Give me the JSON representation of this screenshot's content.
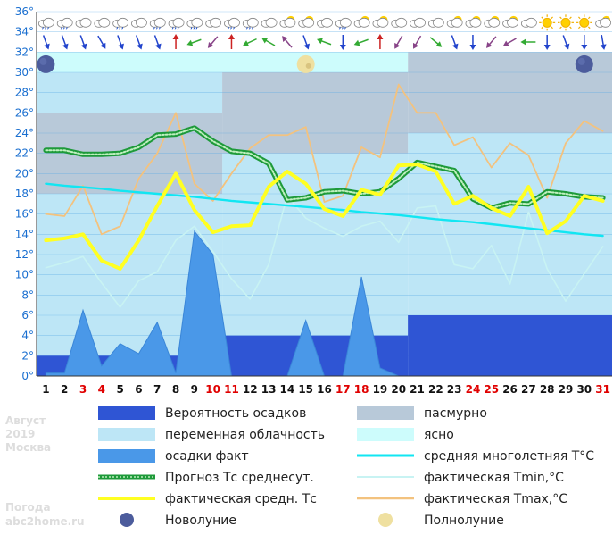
{
  "chart_data": {
    "type": "line",
    "title": "",
    "ylabel": "",
    "xlabel": "",
    "ylim": [
      0,
      36
    ],
    "y_ticks": [
      "0°",
      "2°",
      "4°",
      "6°",
      "8°",
      "10°",
      "12°",
      "14°",
      "16°",
      "18°",
      "20°",
      "22°",
      "24°",
      "26°",
      "28°",
      "30°",
      "32°",
      "34°",
      "36°"
    ],
    "y_tick_values": [
      0,
      2,
      4,
      6,
      8,
      10,
      12,
      14,
      16,
      18,
      20,
      22,
      24,
      26,
      28,
      30,
      32,
      34,
      36
    ],
    "x": [
      1,
      2,
      3,
      4,
      5,
      6,
      7,
      8,
      9,
      10,
      11,
      12,
      13,
      14,
      15,
      16,
      17,
      18,
      19,
      20,
      21,
      22,
      23,
      24,
      25,
      26,
      27,
      28,
      29,
      30,
      31
    ],
    "x_labels": [
      "1",
      "2",
      "3",
      "4",
      "5",
      "6",
      "7",
      "8",
      "9",
      "10",
      "11",
      "12",
      "13",
      "14",
      "15",
      "16",
      "17",
      "18",
      "19",
      "20",
      "21",
      "22",
      "23",
      "24",
      "25",
      "26",
      "27",
      "28",
      "29",
      "30",
      "31"
    ],
    "weekend_days": [
      3,
      4,
      10,
      11,
      17,
      18,
      24,
      25,
      31
    ],
    "weekend_color": "#e00000",
    "cloud_bands": [
      {
        "from": 0.5,
        "to": 10.5,
        "level": 18,
        "type": "partly"
      },
      {
        "from": 10.5,
        "to": 20.5,
        "level": 22,
        "type": "partly"
      },
      {
        "from": 20.5,
        "to": 31.5,
        "level": 24,
        "type": "partly"
      },
      {
        "from": 0.5,
        "to": 10.5,
        "level": 26,
        "type": "overcast",
        "base": 18
      },
      {
        "from": 0.5,
        "to": 10.5,
        "level": 30,
        "type": "partly",
        "base": 26
      },
      {
        "from": 10.5,
        "to": 20.5,
        "level": 30,
        "type": "overcast",
        "base": 22
      },
      {
        "from": 20.5,
        "to": 31.5,
        "level": 32,
        "type": "overcast",
        "base": 24
      },
      {
        "from": 0.5,
        "to": 20.5,
        "level": 32,
        "type": "clear",
        "base": 30
      }
    ],
    "precip_probability_steps": [
      {
        "from": 0.5,
        "to": 10.5,
        "value": 2
      },
      {
        "from": 10.5,
        "to": 20.5,
        "value": 4
      },
      {
        "from": 20.5,
        "to": 31.5,
        "value": 6
      }
    ],
    "series": [
      {
        "name": "осадки факт",
        "key": "precip_actual",
        "values": [
          0.3,
          0.3,
          6.5,
          1.0,
          3.2,
          2.2,
          5.3,
          0.3,
          14.3,
          12.0,
          0,
          0,
          0,
          0,
          5.5,
          0,
          0,
          9.8,
          0.8,
          0,
          0,
          0,
          0,
          0,
          0,
          0,
          0,
          0,
          0,
          0,
          0
        ]
      },
      {
        "name": "фактическая Tmax,°C",
        "key": "tmax",
        "values": [
          16.0,
          15.8,
          18.8,
          14.0,
          14.8,
          19.5,
          22.0,
          26.0,
          19.0,
          17.3,
          20.0,
          22.5,
          23.8,
          23.8,
          24.6,
          17.2,
          17.8,
          22.6,
          21.6,
          28.8,
          26.0,
          26.0,
          22.8,
          23.6,
          20.6,
          23.0,
          21.8,
          17.6,
          23.0,
          25.2,
          24.2
        ]
      },
      {
        "name": "фактическая Tmin,°C",
        "key": "tmin",
        "values": [
          10.7,
          11.2,
          11.8,
          9.2,
          6.8,
          9.4,
          10.3,
          13.4,
          14.8,
          12.3,
          9.6,
          7.6,
          11.0,
          17.8,
          15.6,
          14.6,
          13.8,
          14.8,
          15.3,
          13.2,
          16.6,
          16.8,
          11.0,
          10.6,
          12.9,
          9.1,
          16.2,
          10.6,
          7.4,
          10.1,
          12.8
        ]
      },
      {
        "name": "средняя многолетняя T°C",
        "key": "avg_norm",
        "values": [
          19.0,
          18.8,
          18.65,
          18.5,
          18.3,
          18.15,
          18.0,
          17.85,
          17.7,
          17.5,
          17.3,
          17.15,
          17.0,
          16.85,
          16.7,
          16.55,
          16.4,
          16.2,
          16.05,
          15.9,
          15.7,
          15.5,
          15.35,
          15.2,
          15.0,
          14.8,
          14.6,
          14.4,
          14.2,
          14.0,
          13.85
        ]
      },
      {
        "name": "Прогноз Тс среднесут.",
        "key": "forecast_avg",
        "values": [
          22.3,
          22.3,
          21.9,
          21.9,
          22.0,
          22.6,
          23.8,
          23.9,
          24.5,
          23.2,
          22.2,
          22.0,
          21.0,
          17.4,
          17.6,
          18.2,
          18.3,
          18.0,
          18.2,
          19.5,
          21.1,
          20.7,
          20.3,
          17.5,
          16.6,
          17.1,
          17.0,
          18.2,
          18.0,
          17.7,
          17.6
        ]
      },
      {
        "name": "фактическая средн. Тс",
        "key": "actual_avg",
        "values": [
          13.4,
          13.6,
          14.0,
          11.4,
          10.6,
          13.4,
          16.8,
          20.0,
          16.4,
          14.2,
          14.8,
          14.9,
          18.7,
          20.2,
          19.0,
          16.5,
          15.8,
          18.4,
          17.9,
          20.8,
          20.9,
          20.2,
          17.0,
          17.8,
          16.6,
          15.8,
          18.7,
          14.1,
          15.3,
          17.8,
          17.3
        ]
      }
    ],
    "moon_phases": [
      {
        "day": 1,
        "phase": "new"
      },
      {
        "day": 15,
        "phase": "full"
      },
      {
        "day": 30,
        "phase": "new"
      }
    ],
    "weather_icons": [
      "cloud-rain",
      "cloud-rain",
      "cloud",
      "cloud",
      "cloud-rain",
      "cloud",
      "cloud-rain",
      "cloud-rain",
      "cloud-rain",
      "cloud",
      "cloud-rain",
      "cloud-rain",
      "cloud",
      "partly-sunny",
      "partly-sunny",
      "cloud",
      "cloud-rain",
      "partly-sunny",
      "partly-sunny",
      "cloud",
      "cloud",
      "cloud",
      "partly-sunny",
      "partly-sunny",
      "partly-sunny",
      "partly-sunny",
      "cloud",
      "sun",
      "sun",
      "sun",
      "partly-sunny"
    ],
    "wind_arrows_deg": [
      160,
      160,
      160,
      150,
      160,
      160,
      160,
      0,
      250,
      220,
      0,
      245,
      300,
      320,
      160,
      290,
      180,
      250,
      0,
      210,
      210,
      130,
      160,
      180,
      220,
      240,
      270,
      180,
      160,
      180,
      170
    ],
    "wind_arrow_colors": [
      "#2244cc",
      "#2244cc",
      "#2244cc",
      "#2244cc",
      "#2244cc",
      "#2244cc",
      "#2244cc",
      "#cc2222",
      "#33aa33",
      "#884488",
      "#cc2222",
      "#33aa33",
      "#33aa33",
      "#884488",
      "#2244cc",
      "#33aa33",
      "#2244cc",
      "#33aa33",
      "#cc2222",
      "#884488",
      "#884488",
      "#33aa33",
      "#2244cc",
      "#2244cc",
      "#884488",
      "#884488",
      "#33aa33",
      "#2244cc",
      "#2244cc",
      "#2244cc",
      "#2244cc"
    ],
    "colors": {
      "overcast": "#b8c9d9",
      "partly": "#bde6f6",
      "clear": "#cdfcfc",
      "precip_probability": "#2f55d4",
      "precip_actual": "#4a98e8",
      "forecast_avg": "#1e9a3a",
      "actual_avg": "#ffff22",
      "avg_norm": "#11e6f2",
      "tmin": "#c8f3f3",
      "tmax": "#f3c27e",
      "axis_label": "#1a6fd0"
    },
    "legend_placement": "bottom"
  },
  "legend": [
    {
      "key": "precip_prob",
      "label": "Вероятность осадков"
    },
    {
      "key": "overcast",
      "label": "пасмурно"
    },
    {
      "key": "partly",
      "label": "переменная облачность"
    },
    {
      "key": "clear",
      "label": "ясно"
    },
    {
      "key": "precip_actual",
      "label": "осадки факт"
    },
    {
      "key": "avg_norm",
      "label": "средняя многолетняя T°C"
    },
    {
      "key": "forecast_avg",
      "label": "Прогноз Тс среднесут."
    },
    {
      "key": "tmin",
      "label": "фактическая Tmin,°C"
    },
    {
      "key": "actual_avg",
      "label": "фактическая средн. Тс"
    },
    {
      "key": "tmax",
      "label": "фактическая Tmax,°C"
    },
    {
      "key": "new_moon",
      "label": "Новолуние"
    },
    {
      "key": "full_moon",
      "label": "Полнолуние"
    }
  ],
  "side_info": {
    "month": "Август",
    "year": "2019",
    "city": "Москва",
    "site_label": "Погода",
    "site": "abc2home.ru"
  }
}
